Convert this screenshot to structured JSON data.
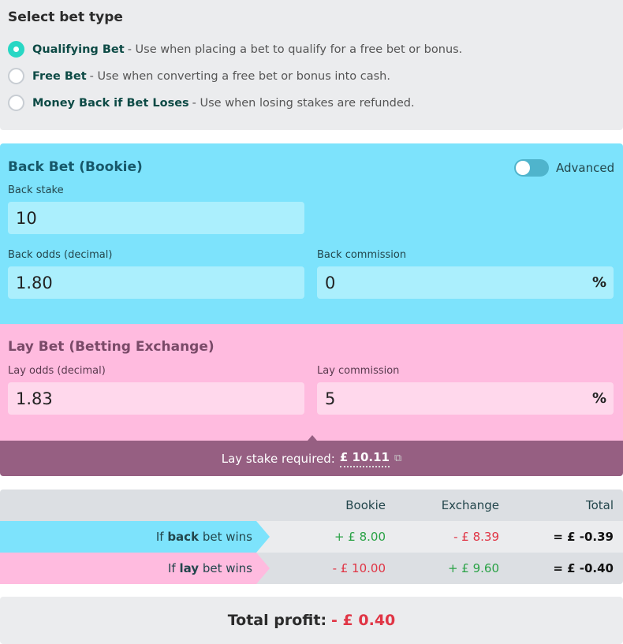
{
  "bet_type": {
    "title": "Select bet type",
    "options": [
      {
        "name": "Qualifying Bet",
        "desc": "- Use when placing a bet to qualify for a free bet or bonus.",
        "selected": true
      },
      {
        "name": "Free Bet",
        "desc": "- Use when converting a free bet or bonus into cash.",
        "selected": false
      },
      {
        "name": "Money Back if Bet Loses",
        "desc": "- Use when losing stakes are refunded.",
        "selected": false
      }
    ]
  },
  "back": {
    "title": "Back Bet (Bookie)",
    "advanced_label": "Advanced",
    "advanced_on": false,
    "stake_label": "Back stake",
    "stake": "10",
    "odds_label": "Back odds (decimal)",
    "odds": "1.80",
    "commission_label": "Back commission",
    "commission": "0",
    "pct": "%"
  },
  "lay": {
    "title": "Lay Bet (Betting Exchange)",
    "odds_label": "Lay odds (decimal)",
    "odds": "1.83",
    "commission_label": "Lay commission",
    "commission": "5",
    "pct": "%"
  },
  "lay_stake": {
    "label": "Lay stake required:",
    "value": "£ 10.11",
    "icon": "copy-icon"
  },
  "results": {
    "headers": [
      "Bookie",
      "Exchange",
      "Total"
    ],
    "rows": [
      {
        "pre": "If",
        "bold": "back",
        "post": "bet wins",
        "bookie": "+ £ 8.00",
        "exchange": "- £ 8.39",
        "total": "= £ -0.39"
      },
      {
        "pre": "If",
        "bold": "lay",
        "post": "bet wins",
        "bookie": "- £ 10.00",
        "exchange": "+ £ 9.60",
        "total": "= £ -0.40"
      }
    ]
  },
  "total_profit": {
    "label": "Total profit:",
    "value": "- £ 0.40"
  },
  "colors": {
    "back": "#7de3fc",
    "lay": "#ffbbdf",
    "stake_bar": "#965f82",
    "positive": "#2aa246",
    "negative": "#e03545",
    "accent": "#28d7c4"
  }
}
